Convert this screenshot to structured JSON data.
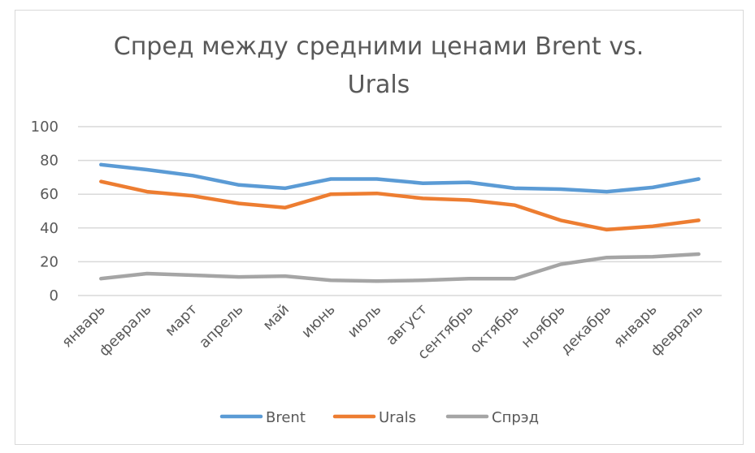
{
  "chart_data": {
    "type": "line",
    "title": "Спред между средними ценами Brent vs. Urals",
    "title_lines": [
      "Спред между средними ценами Brent vs.",
      "Urals"
    ],
    "categories": [
      "январь",
      "февраль",
      "март",
      "апрель",
      "май",
      "июнь",
      "июль",
      "август",
      "сентябрь",
      "октябрь",
      "ноябрь",
      "декабрь",
      "январь",
      "февраль"
    ],
    "series": [
      {
        "name": "Brent",
        "color": "#5b9bd5",
        "values": [
          77.5,
          74.5,
          71,
          65.5,
          63.5,
          69,
          69,
          66.5,
          67,
          63.5,
          63,
          61.5,
          64,
          69
        ]
      },
      {
        "name": "Urals",
        "color": "#ed7d31",
        "values": [
          67.5,
          61.5,
          59,
          54.5,
          52,
          60,
          60.5,
          57.5,
          56.5,
          53.5,
          44.5,
          39,
          41,
          44.5
        ]
      },
      {
        "name": "Спрэд",
        "color": "#a5a5a5",
        "values": [
          10,
          13,
          12,
          11,
          11.5,
          9,
          8.5,
          9,
          10,
          10,
          18.5,
          22.5,
          23,
          24.5
        ]
      }
    ],
    "y_ticks": [
      "0",
      "20",
      "40",
      "60",
      "80",
      "100"
    ],
    "ylim": [
      0,
      100
    ],
    "grid": true,
    "legend_position": "bottom",
    "xlabel": "",
    "ylabel": ""
  }
}
